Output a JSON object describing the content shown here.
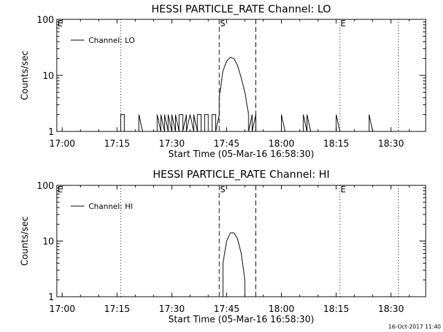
{
  "chart_data": [
    {
      "type": "line",
      "title": "HESSI PARTICLE_RATE Channel: LO",
      "xlabel": "Start Time (05-Mar-16 16:58:30)",
      "ylabel": "Counts/sec",
      "y_scale": "log",
      "xlim": [
        "16:58:30",
        "18:39:30"
      ],
      "ylim": [
        1,
        100
      ],
      "x_ticks": [
        "17:00",
        "17:15",
        "17:30",
        "17:45",
        "18:00",
        "18:15",
        "18:30"
      ],
      "y_ticks": [
        "1",
        "10",
        "100"
      ],
      "legend": {
        "position": "top-left",
        "entries": [
          "Channel: LO"
        ]
      },
      "series": [
        {
          "name": "Channel: LO",
          "x": [
            "17:13",
            "17:16",
            "17:16",
            "17:17",
            "17:17",
            "17:21",
            "17:21",
            "17:22",
            "17:26",
            "17:26",
            "17:27",
            "17:27",
            "17:28",
            "17:28",
            "17:29",
            "17:29",
            "17:30",
            "17:30",
            "17:31",
            "17:31",
            "17:32",
            "17:32",
            "17:33",
            "17:33",
            "17:34",
            "17:34",
            "17:35",
            "17:35",
            "17:36",
            "17:36",
            "17:37",
            "17:37",
            "17:38",
            "17:38",
            "17:39",
            "17:39",
            "17:40",
            "17:40",
            "17:41",
            "17:41",
            "17:42",
            "17:42",
            "17:43",
            "17:43",
            "17:44",
            "17:45",
            "17:46",
            "17:47",
            "17:48",
            "17:49",
            "17:50",
            "17:51",
            "17:51",
            "17:52",
            "17:52",
            "17:53",
            "17:53",
            "17:54",
            "18:00",
            "18:00",
            "18:01",
            "18:06",
            "18:06",
            "18:07",
            "18:07",
            "18:08",
            "18:15",
            "18:15",
            "18:16",
            "18:24",
            "18:24",
            "18:25",
            "18:34"
          ],
          "values": [
            1,
            1,
            2,
            2,
            1,
            1,
            2,
            1,
            1,
            2,
            1,
            2,
            1,
            2,
            1,
            2,
            1,
            2,
            1,
            2,
            1,
            2,
            2,
            1,
            2,
            1,
            2,
            2,
            1,
            2,
            1,
            2,
            2,
            1,
            1,
            2,
            2,
            1,
            1,
            2,
            2,
            1,
            2,
            4,
            12,
            18,
            21,
            20,
            15,
            9,
            5,
            2,
            1,
            2,
            1,
            2,
            1,
            1,
            1,
            2,
            1,
            1,
            2,
            1,
            2,
            1,
            1,
            2,
            1,
            1,
            2,
            1,
            1
          ]
        }
      ],
      "annotations": [
        {
          "label": "E",
          "x": "16:58:30",
          "style": "dotted"
        },
        {
          "label": "",
          "x": "17:16",
          "style": "dotted"
        },
        {
          "label": "S",
          "x": "17:43",
          "style": "dashed"
        },
        {
          "label": "",
          "x": "17:53",
          "style": "dashed"
        },
        {
          "label": "E",
          "x": "18:16",
          "style": "dotted"
        },
        {
          "label": "",
          "x": "18:32",
          "style": "dotted"
        }
      ]
    },
    {
      "type": "line",
      "title": "HESSI PARTICLE_RATE Channel: HI",
      "xlabel": "Start Time (05-Mar-16 16:58:30)",
      "ylabel": "Counts/sec",
      "y_scale": "log",
      "xlim": [
        "16:58:30",
        "18:39:30"
      ],
      "ylim": [
        1,
        100
      ],
      "x_ticks": [
        "17:00",
        "17:15",
        "17:30",
        "17:45",
        "18:00",
        "18:15",
        "18:30"
      ],
      "y_ticks": [
        "1",
        "10",
        "100"
      ],
      "legend": {
        "position": "top-left",
        "entries": [
          "Channel: HI"
        ]
      },
      "series": [
        {
          "name": "Channel: HI",
          "x": [
            "17:44",
            "17:44",
            "17:45",
            "17:46",
            "17:47",
            "17:48",
            "17:49",
            "17:50",
            "17:50"
          ],
          "values": [
            1,
            4,
            10,
            14,
            14,
            11,
            6,
            2,
            1
          ]
        }
      ],
      "annotations": [
        {
          "label": "E",
          "x": "16:58:30",
          "style": "dotted"
        },
        {
          "label": "",
          "x": "17:16",
          "style": "dotted"
        },
        {
          "label": "S",
          "x": "17:43",
          "style": "dashed"
        },
        {
          "label": "",
          "x": "17:53",
          "style": "dashed"
        },
        {
          "label": "E",
          "x": "18:16",
          "style": "dotted"
        },
        {
          "label": "",
          "x": "18:32",
          "style": "dotted"
        }
      ]
    }
  ],
  "footer": {
    "timestamp": "16-Oct-2017 11:40"
  }
}
